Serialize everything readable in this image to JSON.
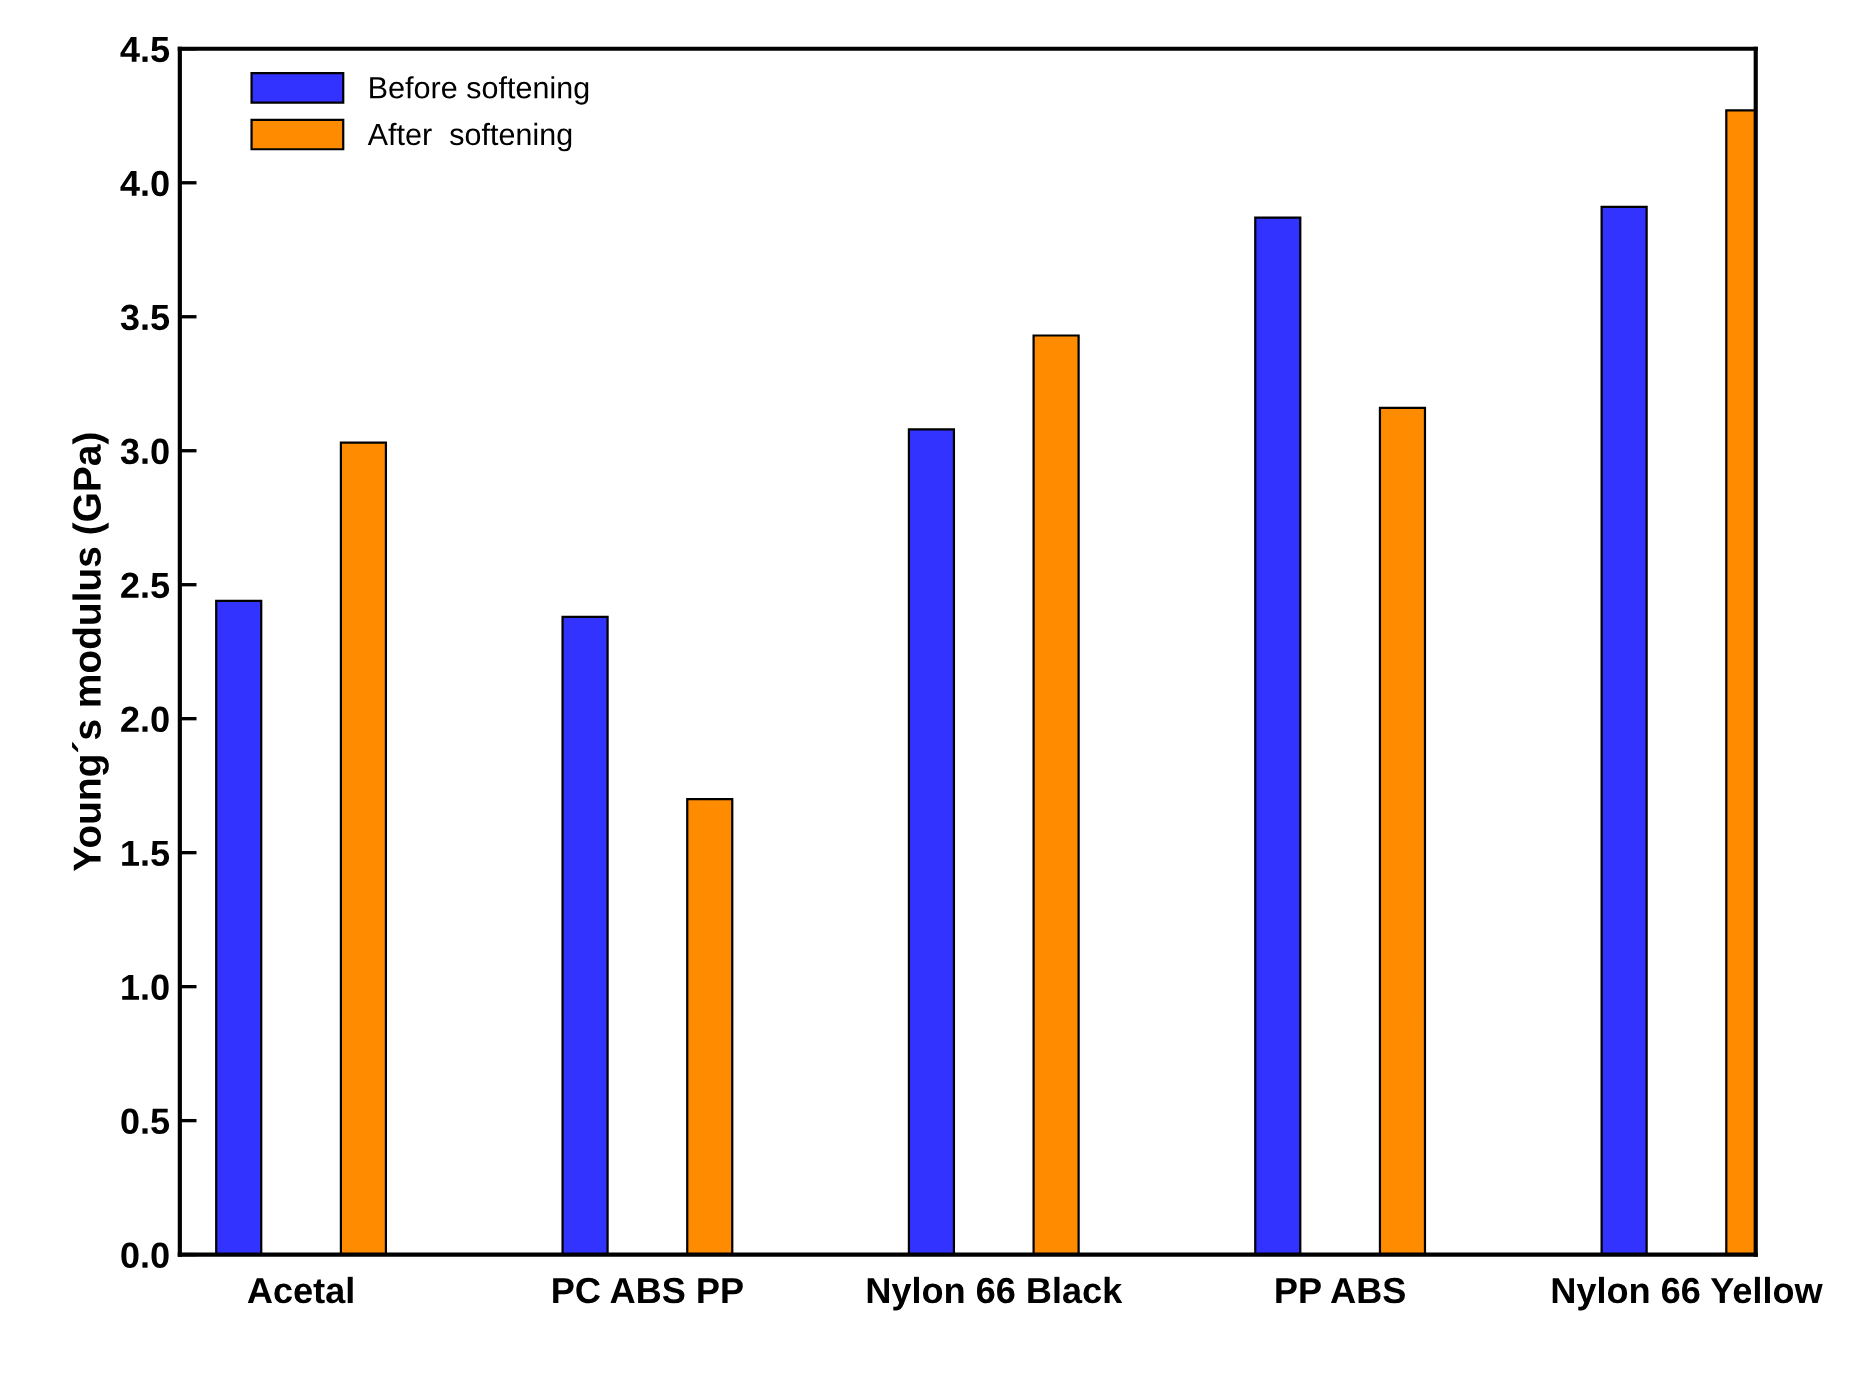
{
  "chart_data": {
    "type": "bar",
    "ylabel": "Young´s modulus (GPa)",
    "categories": [
      "Acetal",
      "PC ABS PP",
      "Nylon 66 Black",
      "PP ABS",
      "Nylon 66 Yellow"
    ],
    "series": [
      {
        "name": "Before softening",
        "color": "#3333ff",
        "values": [
          2.44,
          2.38,
          3.08,
          3.87,
          3.91
        ]
      },
      {
        "name": "After  softening",
        "color": "#ff8c00",
        "values": [
          3.03,
          1.7,
          3.43,
          3.16,
          4.27
        ]
      }
    ],
    "ylim": [
      0,
      4.5
    ],
    "yticks": [
      {
        "value": 0,
        "label": "0.0"
      },
      0.5,
      {
        "value": 1,
        "label": "1.0"
      },
      1.5,
      {
        "value": 2,
        "label": "2.0"
      },
      2.5,
      {
        "value": 3,
        "label": "3.0"
      },
      3.5,
      {
        "value": 4,
        "label": "4.0"
      },
      4.5
    ],
    "grid": false,
    "legend": "top left"
  }
}
